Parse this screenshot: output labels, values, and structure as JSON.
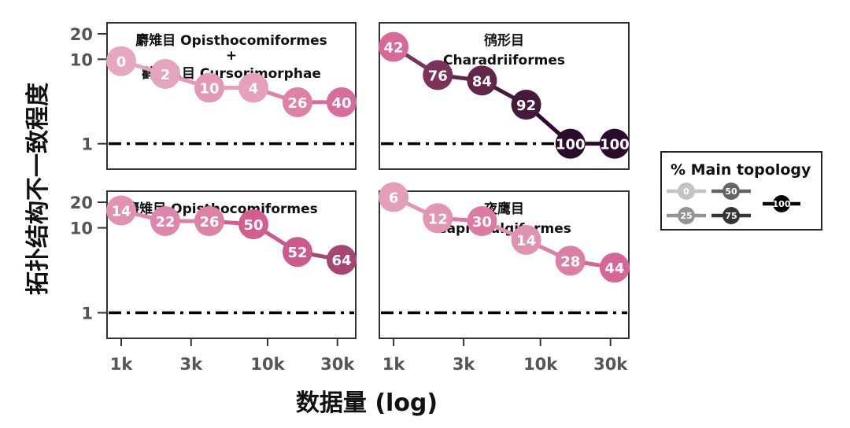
{
  "chart_data": {
    "type": "line",
    "ylabel": "拓扑结构不一致程度",
    "xlabel": "数据量 (log)",
    "x_scale": "log",
    "y_scale": "log",
    "x_ticks": [
      {
        "value": 1000,
        "label": "1k"
      },
      {
        "value": 3000,
        "label": "3k"
      },
      {
        "value": 10000,
        "label": "10k"
      },
      {
        "value": 30000,
        "label": "30k"
      }
    ],
    "y_ticks": [
      {
        "value": 1,
        "label": "1"
      },
      {
        "value": 10,
        "label": "10"
      },
      {
        "value": 20,
        "label": "20"
      }
    ],
    "xlim": [
      800,
      40000
    ],
    "ylim": [
      0.5,
      27
    ],
    "reference_line": {
      "y": 1,
      "style": "dash-dot"
    },
    "panels": [
      {
        "title_lines": [
          "麝雉目 Opisthocomiformes",
          "+",
          "鹳形总目 Cursorimorphae"
        ],
        "x": [
          1000,
          2000,
          4000,
          8000,
          16000,
          32000
        ],
        "y": [
          9.5,
          6.7,
          4.6,
          4.6,
          3.1,
          3.1
        ],
        "labels": [
          "0",
          "2",
          "10",
          "4",
          "26",
          "40"
        ]
      },
      {
        "title_lines": [
          "鸻形目",
          "Charadriiformes"
        ],
        "x": [
          1000,
          2000,
          4000,
          8000,
          16000,
          32000
        ],
        "y": [
          14,
          6.5,
          5.6,
          2.9,
          1,
          1
        ],
        "labels": [
          "42",
          "76",
          "84",
          "92",
          "100",
          "100"
        ]
      },
      {
        "title_lines": [
          "麝雉目 Opisthocomiformes"
        ],
        "x": [
          1000,
          2000,
          4000,
          8000,
          16000,
          32000
        ],
        "y": [
          16,
          12,
          12,
          11,
          5.2,
          4.2
        ],
        "labels": [
          "14",
          "22",
          "26",
          "50",
          "52",
          "64"
        ]
      },
      {
        "title_lines": [
          "夜鹰目",
          "Caprimulgiformes"
        ],
        "x": [
          1000,
          2000,
          4000,
          8000,
          16000,
          32000
        ],
        "y": [
          23,
          13,
          12,
          7.2,
          4.1,
          3.4
        ],
        "labels": [
          "6",
          "12",
          "30",
          "14",
          "28",
          "44"
        ]
      }
    ],
    "legend": {
      "title": "% Main topology",
      "placement": "right",
      "entries": [
        {
          "label": "0",
          "value": 0
        },
        {
          "label": "25",
          "value": 25
        },
        {
          "label": "50",
          "value": 50
        },
        {
          "label": "75",
          "value": 75
        },
        {
          "label": "100",
          "value": 100
        }
      ]
    }
  },
  "colors": {
    "color_low": "#e6a7c0",
    "color_mid": "#d45d90",
    "color_high": "#2a0d2a",
    "legend_low": "#c3c3c3",
    "legend_high": "#050505",
    "reference_line": "#000000",
    "panel_border": "#333333"
  }
}
